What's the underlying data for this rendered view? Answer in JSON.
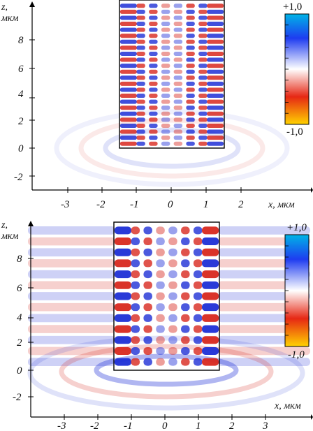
{
  "figure": {
    "panels": [
      {
        "id": "top",
        "z_axis_label": [
          "z,",
          "мкм"
        ],
        "x_axis_label": "x, мкм",
        "z_ticks": [
          "8",
          "6",
          "4",
          "2",
          "0",
          "-2"
        ],
        "x_ticks": [
          "-3",
          "-2",
          "-1",
          "0",
          "1",
          "2"
        ],
        "colorbar": {
          "max_label": "+1,0",
          "min_label": "-1,0"
        }
      },
      {
        "id": "bottom",
        "z_axis_label": [
          "z,",
          "мкм"
        ],
        "x_axis_label": "x, мкм",
        "z_ticks": [
          "8",
          "6",
          "4",
          "2",
          "0",
          "-2"
        ],
        "x_ticks": [
          "-3",
          "-2",
          "-1",
          "0",
          "1",
          "2",
          "3"
        ],
        "colorbar": {
          "max_label": "+1,0",
          "min_label": "-1,0"
        }
      }
    ],
    "colors": {
      "positive": "#d8281e",
      "negative": "#1e2fd6",
      "neutral": "#ffffff",
      "colorbar_top": "#00b4e6",
      "colorbar_bottom": "#ffd200"
    }
  }
}
